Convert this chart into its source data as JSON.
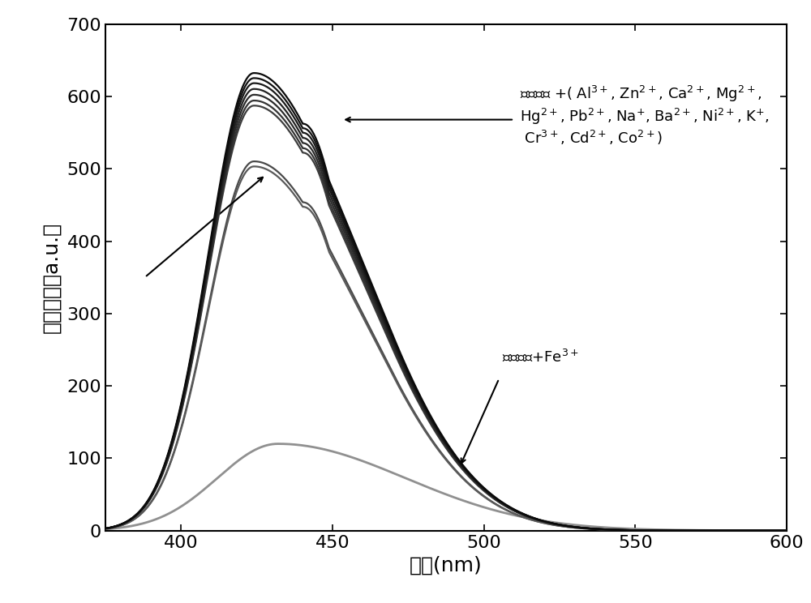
{
  "xlim": [
    375,
    600
  ],
  "ylim": [
    0,
    700
  ],
  "xticks": [
    400,
    450,
    500,
    550,
    600
  ],
  "yticks": [
    0,
    100,
    200,
    300,
    400,
    500,
    600,
    700
  ],
  "xlabel": "波长(nm)",
  "ylabel": "药光强度（a.u.）",
  "high_group_peaks": [
    632,
    625,
    618,
    610,
    602,
    594,
    587
  ],
  "mid_group_peaks": [
    510,
    503
  ],
  "fe_peak": 120,
  "background_color": "#ffffff",
  "high_colors": [
    "#0a0a0a",
    "#111111",
    "#191919",
    "#222222",
    "#2b2b2b",
    "#343434",
    "#3d3d3d"
  ],
  "mid_colors": [
    "#4a4a4a",
    "#595959"
  ],
  "fe_color": "#909090"
}
